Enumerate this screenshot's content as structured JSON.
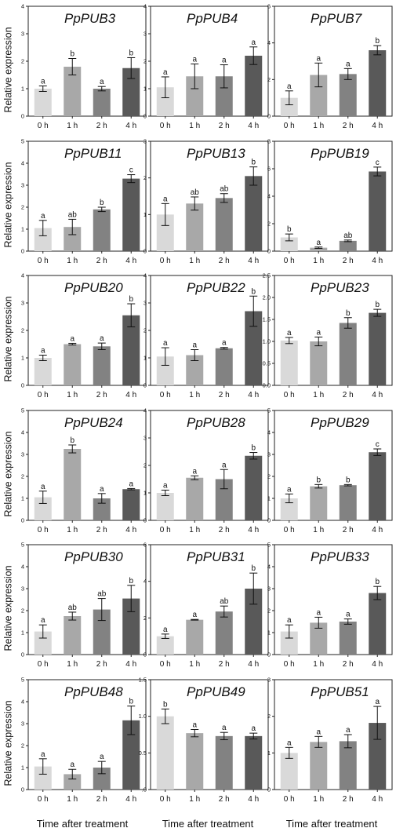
{
  "y_axis_label": "Relative expression",
  "x_axis_label": "Time after treatment",
  "colors": {
    "bars": [
      "#d9d9d9",
      "#a8a8a8",
      "#828282",
      "#595959"
    ],
    "axis": "#222222",
    "text": "#111111"
  },
  "chart_data": [
    {
      "type": "bar",
      "title": "PpPUB3",
      "categories": [
        "0 h",
        "1 h",
        "2 h",
        "4 h"
      ],
      "values": [
        1.0,
        1.8,
        1.0,
        1.75
      ],
      "errors": [
        0.1,
        0.3,
        0.08,
        0.38
      ],
      "letters": [
        "a",
        "b",
        "a",
        "b"
      ],
      "ylim": [
        0,
        4
      ],
      "yticks": [
        "0",
        "1",
        "2",
        "3",
        "4"
      ]
    },
    {
      "type": "bar",
      "title": "PpPUB4",
      "categories": [
        "0 h",
        "1 h",
        "2 h",
        "4 h"
      ],
      "values": [
        1.05,
        1.45,
        1.45,
        2.2
      ],
      "errors": [
        0.38,
        0.45,
        0.42,
        0.32
      ],
      "letters": [
        "a",
        "a",
        "a",
        "a"
      ],
      "ylim": [
        0,
        4
      ],
      "yticks": [
        "0",
        "1",
        "2",
        "3",
        "4"
      ]
    },
    {
      "type": "bar",
      "title": "PpPUB7",
      "categories": [
        "0 h",
        "1 h",
        "2 h",
        "4 h"
      ],
      "values": [
        1.0,
        2.25,
        2.3,
        3.6
      ],
      "errors": [
        0.38,
        0.65,
        0.3,
        0.25
      ],
      "letters": [
        "a",
        "a",
        "a",
        "b"
      ],
      "ylim": [
        0,
        6
      ],
      "yticks": [
        "0",
        "2",
        "4",
        "6"
      ]
    },
    {
      "type": "bar",
      "title": "PpPUB11",
      "categories": [
        "0 h",
        "1 h",
        "2 h",
        "4 h"
      ],
      "values": [
        1.05,
        1.1,
        1.9,
        3.3
      ],
      "errors": [
        0.35,
        0.35,
        0.1,
        0.18
      ],
      "letters": [
        "a",
        "ab",
        "b",
        "c"
      ],
      "ylim": [
        0,
        5
      ],
      "yticks": [
        "0",
        "1",
        "2",
        "3",
        "4",
        "5"
      ]
    },
    {
      "type": "bar",
      "title": "PpPUB13",
      "categories": [
        "0 h",
        "1 h",
        "2 h",
        "4 h"
      ],
      "values": [
        1.0,
        1.3,
        1.45,
        2.05
      ],
      "errors": [
        0.3,
        0.18,
        0.12,
        0.25
      ],
      "letters": [
        "a",
        "ab",
        "ab",
        "b"
      ],
      "ylim": [
        0,
        3
      ],
      "yticks": [
        "0",
        "1",
        "2",
        "3"
      ]
    },
    {
      "type": "bar",
      "title": "PpPUB19",
      "categories": [
        "0 h",
        "1 h",
        "2 h",
        "4 h"
      ],
      "values": [
        1.0,
        0.25,
        0.75,
        5.8
      ],
      "errors": [
        0.25,
        0.05,
        0.06,
        0.32
      ],
      "letters": [
        "b",
        "a",
        "ab",
        "c"
      ],
      "ylim": [
        0,
        8
      ],
      "yticks": [
        "0",
        "2",
        "4",
        "6",
        "8"
      ]
    },
    {
      "type": "bar",
      "title": "PpPUB20",
      "categories": [
        "0 h",
        "1 h",
        "2 h",
        "4 h"
      ],
      "values": [
        1.0,
        1.5,
        1.42,
        2.55
      ],
      "errors": [
        0.1,
        0.03,
        0.12,
        0.42
      ],
      "letters": [
        "a",
        "a",
        "a",
        "b"
      ],
      "ylim": [
        0,
        4
      ],
      "yticks": [
        "0",
        "1",
        "2",
        "3",
        "4"
      ]
    },
    {
      "type": "bar",
      "title": "PpPUB22",
      "categories": [
        "0 h",
        "1 h",
        "2 h",
        "4 h"
      ],
      "values": [
        1.05,
        1.1,
        1.35,
        2.7
      ],
      "errors": [
        0.32,
        0.2,
        0.03,
        0.55
      ],
      "letters": [
        "a",
        "a",
        "a",
        "b"
      ],
      "ylim": [
        0,
        4
      ],
      "yticks": [
        "0",
        "1",
        "2",
        "3",
        "4"
      ]
    },
    {
      "type": "bar",
      "title": "PpPUB23",
      "categories": [
        "0 h",
        "1 h",
        "2 h",
        "4 h"
      ],
      "values": [
        1.02,
        1.0,
        1.42,
        1.65
      ],
      "errors": [
        0.07,
        0.1,
        0.12,
        0.08
      ],
      "letters": [
        "a",
        "a",
        "b",
        "b"
      ],
      "ylim": [
        0,
        2.5
      ],
      "yticks": [
        "0.0",
        "0.5",
        "1.0",
        "1.5",
        "2.0",
        "2.5"
      ]
    },
    {
      "type": "bar",
      "title": "PpPUB24",
      "categories": [
        "0 h",
        "1 h",
        "2 h",
        "4 h"
      ],
      "values": [
        1.05,
        3.25,
        1.0,
        1.42
      ],
      "errors": [
        0.28,
        0.18,
        0.22,
        0.03
      ],
      "letters": [
        "a",
        "b",
        "a",
        "a"
      ],
      "ylim": [
        0,
        5
      ],
      "yticks": [
        "0",
        "1",
        "2",
        "3",
        "4",
        "5"
      ]
    },
    {
      "type": "bar",
      "title": "PpPUB28",
      "categories": [
        "0 h",
        "1 h",
        "2 h",
        "4 h"
      ],
      "values": [
        1.0,
        1.55,
        1.5,
        2.35
      ],
      "errors": [
        0.1,
        0.07,
        0.35,
        0.12
      ],
      "letters": [
        "a",
        "a",
        "a",
        "b"
      ],
      "ylim": [
        0,
        4
      ],
      "yticks": [
        "0",
        "1",
        "2",
        "3",
        "4"
      ]
    },
    {
      "type": "bar",
      "title": "PpPUB29",
      "categories": [
        "0 h",
        "1 h",
        "2 h",
        "4 h"
      ],
      "values": [
        1.0,
        1.55,
        1.6,
        3.1
      ],
      "errors": [
        0.2,
        0.08,
        0.03,
        0.15
      ],
      "letters": [
        "a",
        "b",
        "b",
        "c"
      ],
      "ylim": [
        0,
        5
      ],
      "yticks": [
        "0",
        "1",
        "2",
        "3",
        "4",
        "5"
      ]
    },
    {
      "type": "bar",
      "title": "PpPUB30",
      "categories": [
        "0 h",
        "1 h",
        "2 h",
        "4 h"
      ],
      "values": [
        1.05,
        1.75,
        2.05,
        2.55
      ],
      "errors": [
        0.3,
        0.18,
        0.5,
        0.6
      ],
      "letters": [
        "a",
        "ab",
        "ab",
        "b"
      ],
      "ylim": [
        0,
        5
      ],
      "yticks": [
        "0",
        "1",
        "2",
        "3",
        "4",
        "5"
      ]
    },
    {
      "type": "bar",
      "title": "PpPUB31",
      "categories": [
        "0 h",
        "1 h",
        "2 h",
        "4 h"
      ],
      "values": [
        1.0,
        1.9,
        2.35,
        3.6
      ],
      "errors": [
        0.12,
        0.02,
        0.3,
        0.85
      ],
      "letters": [
        "a",
        "a",
        "ab",
        "b"
      ],
      "ylim": [
        0,
        6
      ],
      "yticks": [
        "0",
        "2",
        "4",
        "6"
      ]
    },
    {
      "type": "bar",
      "title": "PpPUB33",
      "categories": [
        "0 h",
        "1 h",
        "2 h",
        "4 h"
      ],
      "values": [
        1.05,
        1.45,
        1.5,
        2.8
      ],
      "errors": [
        0.3,
        0.25,
        0.12,
        0.3
      ],
      "letters": [
        "a",
        "a",
        "a",
        "b"
      ],
      "ylim": [
        0,
        5
      ],
      "yticks": [
        "0",
        "1",
        "2",
        "3",
        "4",
        "5"
      ]
    },
    {
      "type": "bar",
      "title": "PpPUB48",
      "categories": [
        "0 h",
        "1 h",
        "2 h",
        "4 h"
      ],
      "values": [
        1.05,
        0.7,
        1.0,
        3.15
      ],
      "errors": [
        0.35,
        0.22,
        0.28,
        0.65
      ],
      "letters": [
        "a",
        "a",
        "a",
        "b"
      ],
      "ylim": [
        0,
        5
      ],
      "yticks": [
        "0",
        "1",
        "2",
        "3",
        "4",
        "5"
      ]
    },
    {
      "type": "bar",
      "title": "PpPUB49",
      "categories": [
        "0 h",
        "1 h",
        "2 h",
        "4 h"
      ],
      "values": [
        1.0,
        0.77,
        0.73,
        0.73
      ],
      "errors": [
        0.1,
        0.05,
        0.05,
        0.04
      ],
      "letters": [
        "b",
        "a",
        "a",
        "a"
      ],
      "ylim": [
        0,
        1.5
      ],
      "yticks": [
        ".0",
        "0.5",
        "1.0",
        "1.5"
      ]
    },
    {
      "type": "bar",
      "title": "PpPUB51",
      "categories": [
        "0 h",
        "1 h",
        "2 h",
        "4 h"
      ],
      "values": [
        1.0,
        1.3,
        1.32,
        1.82
      ],
      "errors": [
        0.15,
        0.15,
        0.18,
        0.45
      ],
      "letters": [
        "a",
        "a",
        "a",
        "a"
      ],
      "ylim": [
        0,
        3
      ],
      "yticks": [
        "0",
        "1",
        "2",
        "3"
      ]
    }
  ]
}
